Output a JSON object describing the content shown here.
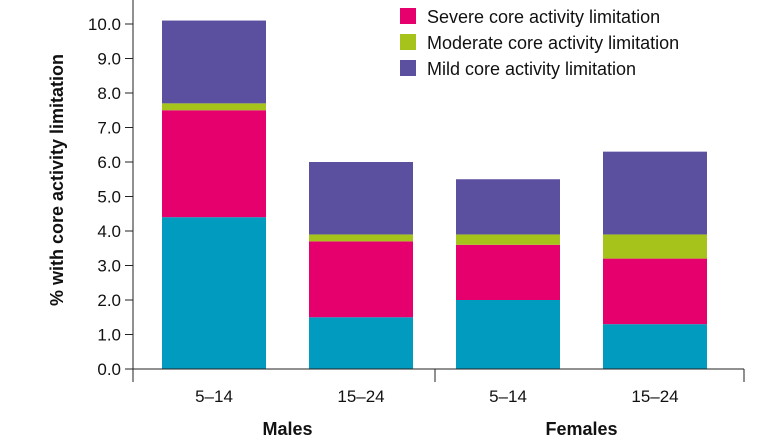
{
  "chart_data": {
    "type": "bar",
    "stacked": true,
    "ylabel": "% with core activity limitation",
    "ylim": [
      0,
      10.3
    ],
    "yticks": [
      0.0,
      1.0,
      2.0,
      3.0,
      4.0,
      5.0,
      6.0,
      7.0,
      8.0,
      9.0,
      10.0
    ],
    "ytick_labels": [
      "0.0",
      "1.0",
      "2.0",
      "3.0",
      "4.0",
      "5.0",
      "6.0",
      "7.0",
      "8.0",
      "9.0",
      "10.0"
    ],
    "categories": [
      "5–14",
      "15–24",
      "5–14",
      "15–24"
    ],
    "groups": [
      {
        "label": "Males",
        "categories": [
          0,
          1
        ]
      },
      {
        "label": "Females",
        "categories": [
          2,
          3
        ]
      }
    ],
    "legend_placement": "top-right",
    "series": [
      {
        "name": "",
        "color": "#009bbf",
        "values": [
          4.4,
          1.5,
          2.0,
          1.3
        ],
        "in_legend": false
      },
      {
        "name": "Severe core activity limitation",
        "color": "#e6006e",
        "values": [
          3.1,
          2.2,
          1.6,
          1.9
        ],
        "in_legend": true
      },
      {
        "name": "Moderate core activity limitation",
        "color": "#a6c31c",
        "values": [
          0.2,
          0.2,
          0.3,
          0.7
        ],
        "in_legend": true
      },
      {
        "name": "Mild core activity limitation",
        "color": "#5b4fa0",
        "values": [
          2.4,
          2.1,
          1.6,
          2.4
        ],
        "in_legend": true
      }
    ]
  }
}
